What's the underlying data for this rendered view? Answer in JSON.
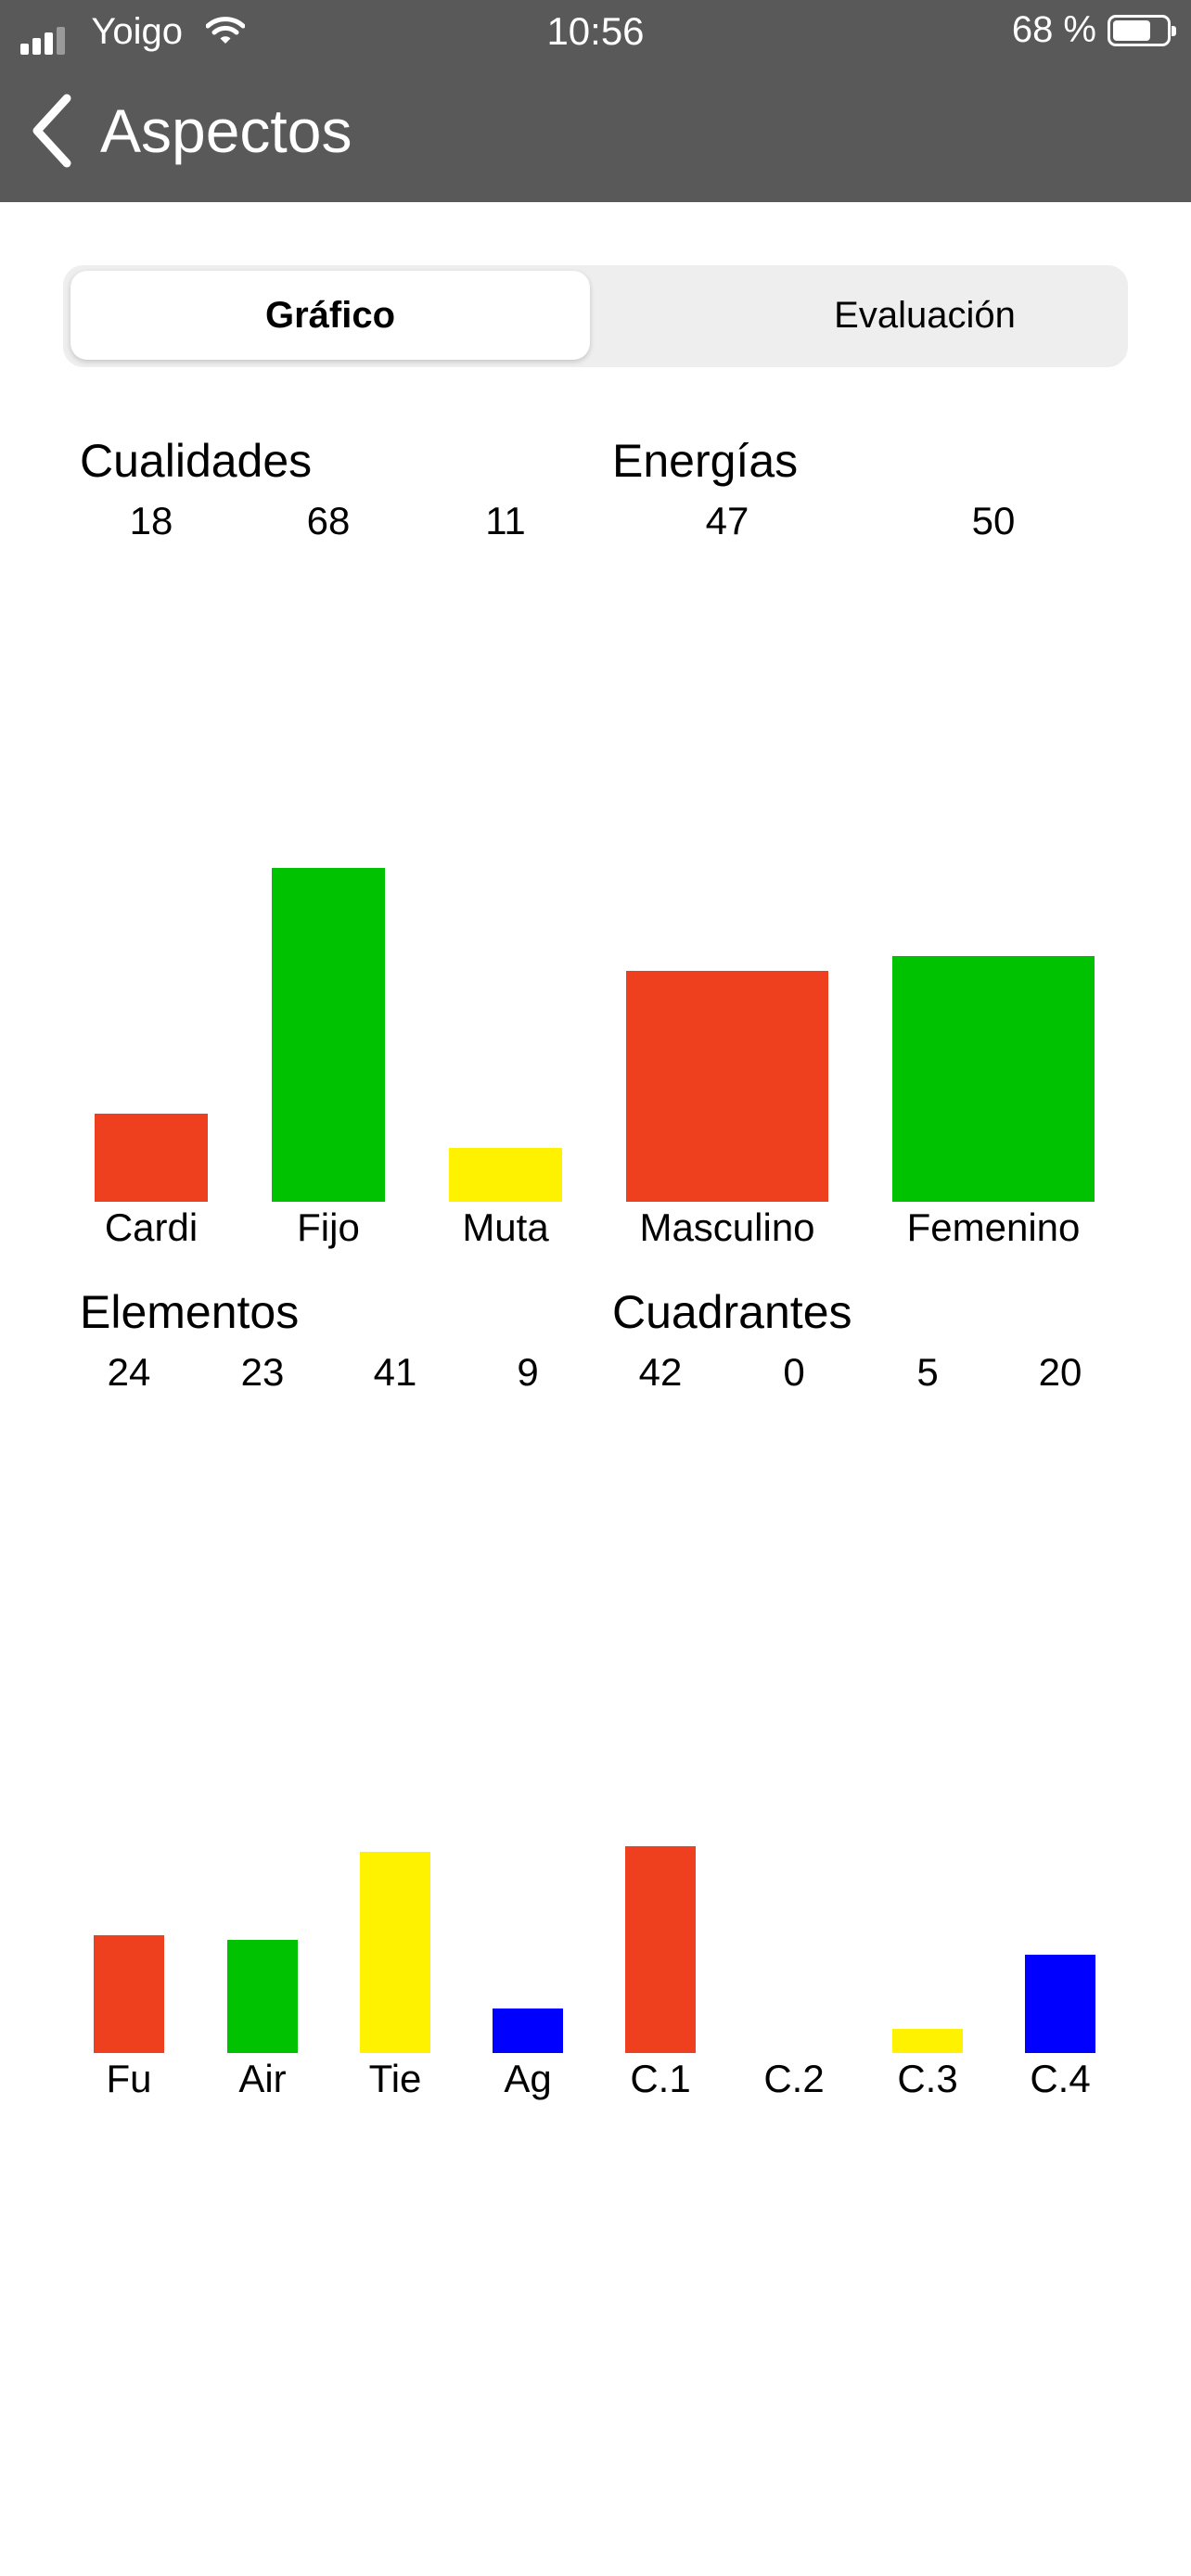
{
  "status_bar": {
    "carrier": "Yoigo",
    "time": "10:56",
    "battery": "68 %"
  },
  "nav": {
    "title": "Aspectos",
    "back_icon": "chevron-left-icon"
  },
  "segment": {
    "selected": "Gráfico",
    "other": "Evaluación"
  },
  "colors": {
    "red": "#ee3f1f",
    "green": "#00c200",
    "yellow": "#fff200",
    "blue": "#0000ff"
  },
  "chart_data": [
    {
      "type": "bar",
      "title": "Cualidades",
      "categories": [
        "Cardi",
        "Fijo",
        "Muta"
      ],
      "values": [
        18,
        68,
        11
      ],
      "colors": [
        "#ee3f1f",
        "#00c200",
        "#fff200"
      ]
    },
    {
      "type": "bar",
      "title": "Energías",
      "categories": [
        "Masculino",
        "Femenino"
      ],
      "values": [
        47,
        50
      ],
      "colors": [
        "#ee3f1f",
        "#00c200"
      ]
    },
    {
      "type": "bar",
      "title": "Elementos",
      "categories": [
        "Fu",
        "Air",
        "Tie",
        "Ag"
      ],
      "values": [
        24,
        23,
        41,
        9
      ],
      "colors": [
        "#ee3f1f",
        "#00c200",
        "#fff200",
        "#0000ff"
      ]
    },
    {
      "type": "bar",
      "title": "Cuadrantes",
      "categories": [
        "C.1",
        "C.2",
        "C.3",
        "C.4"
      ],
      "values": [
        42,
        0,
        5,
        20
      ],
      "colors": [
        "#ee3f1f",
        "#00c200",
        "#fff200",
        "#0000ff"
      ]
    }
  ]
}
